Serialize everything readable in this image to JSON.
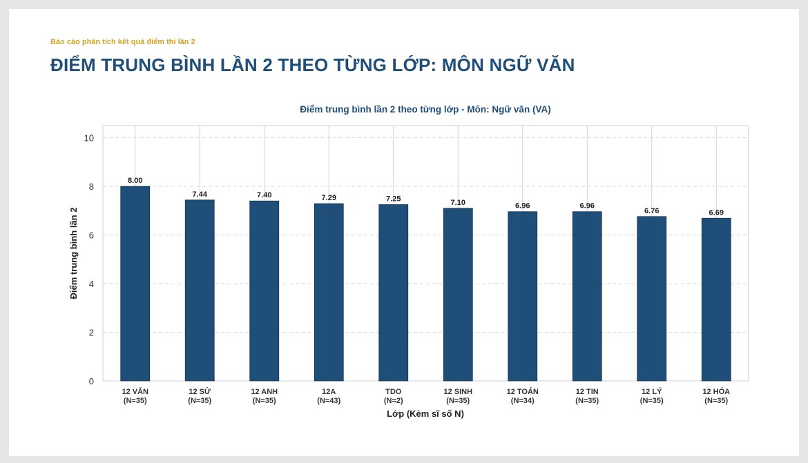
{
  "header": {
    "subtitle": "Báo cáo phân tích kết quả điểm thi lần 2",
    "title": "ĐIỂM TRUNG BÌNH LẦN 2 THEO TỪNG LỚP: MÔN NGỮ VĂN"
  },
  "chart_data": {
    "type": "bar",
    "title": "Điểm trung bình lần 2 theo từng lớp - Môn: Ngữ văn (VA)",
    "xlabel": "Lớp (Kèm sĩ số N)",
    "ylabel": "Điểm trung bình lần 2",
    "ylim": [
      0,
      10.5
    ],
    "yticks": [
      0,
      2,
      4,
      6,
      8,
      10
    ],
    "grid": true,
    "bar_color": "#1f4e79",
    "categories": [
      "12 VĂN",
      "12 SỬ",
      "12 ANH",
      "12A",
      "TDO",
      "12 SINH",
      "12 TOÁN",
      "12 TIN",
      "12 LÝ",
      "12 HÓA"
    ],
    "category_n": [
      "(N=35)",
      "(N=35)",
      "(N=35)",
      "(N=43)",
      "(N=2)",
      "(N=35)",
      "(N=34)",
      "(N=35)",
      "(N=35)",
      "(N=35)"
    ],
    "values": [
      8.0,
      7.44,
      7.4,
      7.29,
      7.25,
      7.1,
      6.96,
      6.96,
      6.76,
      6.69
    ],
    "value_labels": [
      "8.00",
      "7.44",
      "7.40",
      "7.29",
      "7.25",
      "7.10",
      "6.96",
      "6.96",
      "6.76",
      "6.69"
    ]
  }
}
